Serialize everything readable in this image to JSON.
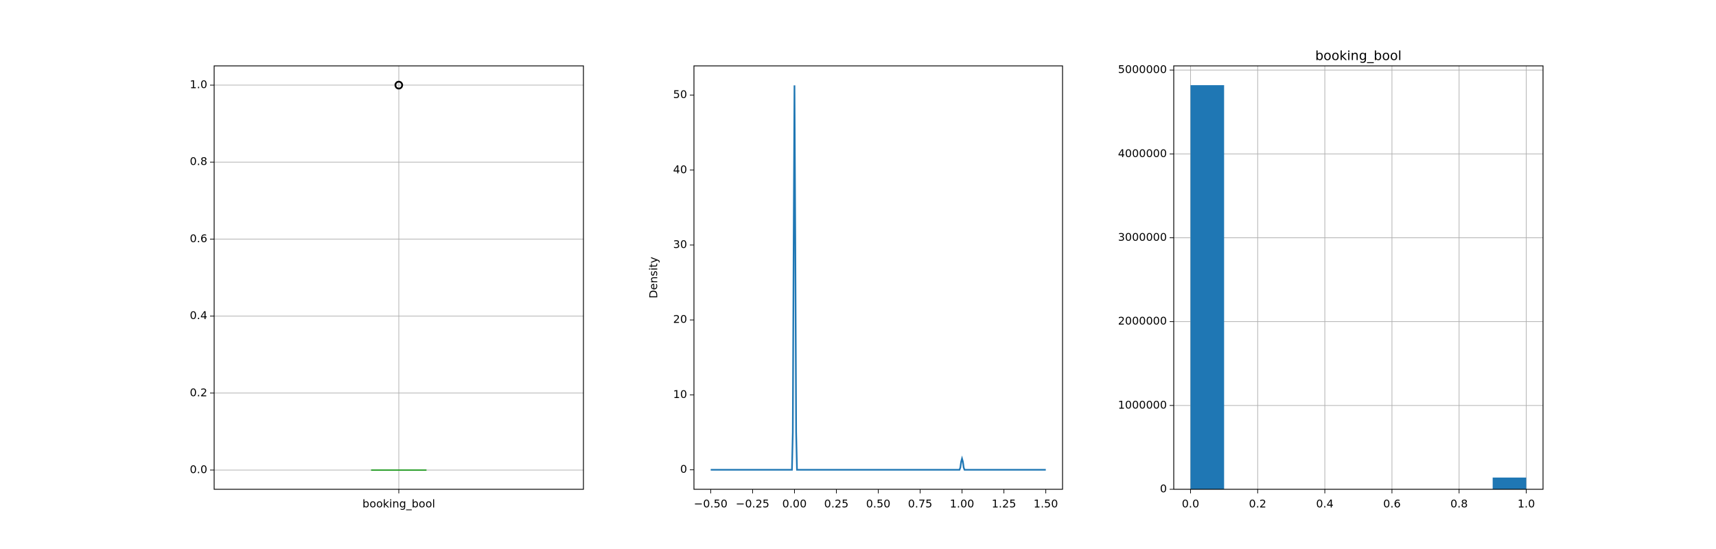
{
  "chart_data": [
    {
      "type": "box",
      "categories": [
        "booking_bool"
      ],
      "boxes": [
        {
          "whislo": 0,
          "q1": 0,
          "med": 0,
          "q3": 0,
          "whishi": 0,
          "fliers": [
            1
          ]
        }
      ],
      "color": "#1f77b4",
      "median_color": "#2ca02c",
      "ylim": [
        -0.05,
        1.05
      ],
      "yticks": [
        {
          "value": 0,
          "label": "0.0"
        },
        0.2,
        0.4,
        0.6,
        0.8,
        {
          "value": 1,
          "label": "1.0"
        }
      ],
      "grid": true
    },
    {
      "type": "line",
      "ylabel": "Density",
      "color": "#1f77b4",
      "x": [
        -0.5,
        -0.015,
        -0.01,
        -0.005,
        0,
        0.005,
        0.01,
        0.015,
        0.985,
        0.99,
        0.995,
        1.0,
        1.005,
        1.01,
        1.015,
        1.5
      ],
      "values": [
        0,
        0,
        5,
        30,
        51.3,
        30,
        5,
        0,
        0,
        0.3,
        1.1,
        1.5,
        1.1,
        0.3,
        0,
        0
      ],
      "xlim": [
        -0.6,
        1.6
      ],
      "xticks": [
        {
          "value": -0.5,
          "label": "−0.50"
        },
        {
          "value": -0.25,
          "label": "−0.25"
        },
        {
          "value": 0,
          "label": "0.00"
        },
        0.25,
        {
          "value": 0.5,
          "label": "0.50"
        },
        0.75,
        {
          "value": 1,
          "label": "1.00"
        },
        1.25,
        {
          "value": 1.5,
          "label": "1.50"
        }
      ],
      "ylim": [
        -2.6,
        53.9
      ],
      "yticks": [
        0,
        10,
        20,
        30,
        40,
        50
      ],
      "grid": false
    },
    {
      "type": "histogram",
      "title": "booking_bool",
      "color": "#1f77b4",
      "bins": [
        0,
        0.1,
        0.2,
        0.3,
        0.4,
        0.5,
        0.6,
        0.7,
        0.8,
        0.9,
        1.0
      ],
      "values": [
        4820000,
        0,
        0,
        0,
        0,
        0,
        0,
        0,
        0,
        140000
      ],
      "xlim": [
        -0.05,
        1.05
      ],
      "xticks": [
        {
          "value": 0,
          "label": "0.0"
        },
        0.2,
        0.4,
        0.6,
        0.8,
        {
          "value": 1,
          "label": "1.0"
        }
      ],
      "ylim": [
        0,
        5050000
      ],
      "yticks": [
        0,
        1000000,
        2000000,
        3000000,
        4000000,
        5000000
      ],
      "grid": true
    }
  ]
}
